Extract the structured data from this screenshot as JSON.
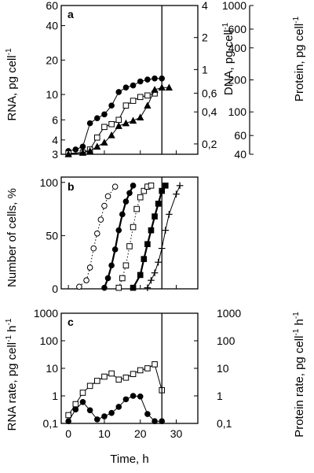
{
  "chart_data": [
    {
      "panel": "a",
      "type": "line",
      "xlim": [
        -2,
        36
      ],
      "vertical_line_x": 26,
      "axes": {
        "left": {
          "label": "RNA, pg cell",
          "label_sup": "-1",
          "scale": "log",
          "lim": [
            3,
            60
          ],
          "ticks": [
            {
              "v": 3,
              "t": "3"
            },
            {
              "v": 4,
              "t": "4"
            },
            {
              "v": 6,
              "t": "6"
            },
            {
              "v": 10,
              "t": "10"
            },
            {
              "v": 20,
              "t": "20"
            },
            {
              "v": 40,
              "t": "40"
            },
            {
              "v": 60,
              "t": "60"
            }
          ]
        },
        "right1": {
          "label": "DNA, pg  cell",
          "label_sup": "-1",
          "scale": "log",
          "lim": [
            0.16,
            4
          ],
          "ticks": [
            {
              "v": 0.2,
              "t": "0,2"
            },
            {
              "v": 0.4,
              "t": "0,4"
            },
            {
              "v": 0.6,
              "t": "0,6"
            },
            {
              "v": 1,
              "t": "1"
            },
            {
              "v": 2,
              "t": "2"
            },
            {
              "v": 4,
              "t": "4"
            }
          ]
        },
        "right2": {
          "label": "Protein, pg  cell",
          "label_sup": "-1",
          "scale": "log",
          "lim": [
            40,
            1000
          ],
          "ticks": [
            {
              "v": 40,
              "t": "40"
            },
            {
              "v": 60,
              "t": "60"
            },
            {
              "v": 100,
              "t": "100"
            },
            {
              "v": 200,
              "t": "200"
            },
            {
              "v": 400,
              "t": "400"
            },
            {
              "v": 600,
              "t": "600"
            },
            {
              "v": 1000,
              "t": "1000"
            }
          ]
        }
      },
      "series": [
        {
          "marker": "filled-circle",
          "axis": "left",
          "style": "solid",
          "x": [
            0,
            2,
            4,
            6,
            8,
            10,
            12,
            14,
            16,
            18,
            20,
            22,
            24,
            26
          ],
          "y": [
            3.2,
            3.3,
            3.5,
            5.6,
            6.2,
            6.7,
            8.0,
            10.5,
            11.5,
            12.0,
            13.0,
            13.5,
            13.8,
            13.8
          ]
        },
        {
          "marker": "open-square",
          "axis": "left",
          "style": "solid",
          "x": [
            0,
            4,
            6,
            8,
            10,
            12,
            14,
            16,
            18,
            20,
            22,
            24
          ],
          "y": [
            3.05,
            3.1,
            3.3,
            4.2,
            5.2,
            5.5,
            6.0,
            8.0,
            8.8,
            9.5,
            9.8,
            10.2
          ]
        },
        {
          "marker": "filled-triangle",
          "axis": "left",
          "style": "solid",
          "x": [
            0,
            4,
            6,
            8,
            10,
            12,
            14,
            16,
            18,
            20,
            22,
            24,
            26,
            28
          ],
          "y": [
            3.0,
            3.1,
            3.2,
            3.5,
            3.8,
            4.4,
            5.3,
            5.6,
            5.9,
            6.3,
            8.0,
            11.0,
            11.5,
            11.5
          ]
        }
      ]
    },
    {
      "panel": "b",
      "type": "line",
      "xlim": [
        -2,
        36
      ],
      "vertical_line_x": 26,
      "axes": {
        "left": {
          "label": "Number of cells, %",
          "scale": "linear",
          "lim": [
            0,
            105
          ],
          "ticks": [
            {
              "v": 0,
              "t": "0"
            },
            {
              "v": 50,
              "t": "50"
            },
            {
              "v": 100,
              "t": "100"
            }
          ]
        }
      },
      "series": [
        {
          "marker": "open-circle",
          "style": "dotted",
          "x": [
            3,
            5,
            6,
            7,
            8,
            9,
            10,
            11,
            13
          ],
          "y": [
            2,
            8,
            20,
            38,
            52,
            65,
            78,
            87,
            96
          ]
        },
        {
          "marker": "filled-circle",
          "style": "bold",
          "x": [
            10,
            11,
            12,
            13,
            14,
            15,
            16,
            17,
            18
          ],
          "y": [
            1,
            10,
            22,
            37,
            55,
            70,
            82,
            90,
            97
          ]
        },
        {
          "marker": "open-square",
          "style": "dotted",
          "x": [
            14,
            15,
            16,
            17,
            18,
            19,
            20,
            21,
            22,
            23
          ],
          "y": [
            1,
            10,
            22,
            40,
            58,
            75,
            86,
            92,
            96,
            97
          ]
        },
        {
          "marker": "filled-square",
          "style": "bold",
          "x": [
            18,
            20,
            21,
            22,
            23,
            24,
            25,
            26,
            27
          ],
          "y": [
            1,
            13,
            28,
            42,
            55,
            68,
            80,
            92,
            97
          ]
        },
        {
          "marker": "plus",
          "style": "solid",
          "x": [
            22,
            23,
            24,
            25,
            26,
            27,
            28,
            30,
            31
          ],
          "y": [
            1,
            8,
            15,
            25,
            38,
            55,
            70,
            89,
            97
          ]
        }
      ]
    },
    {
      "panel": "c",
      "type": "line",
      "xlim": [
        -2,
        36
      ],
      "vertical_line_x": 26,
      "axes": {
        "left": {
          "label": "RNA rate, pg  cell",
          "label_sup1": "-1",
          "label_mid": "  h",
          "label_sup2": "-1",
          "scale": "log",
          "lim": [
            0.1,
            1000
          ],
          "ticks": [
            {
              "v": 0.1,
              "t": "0,1"
            },
            {
              "v": 1,
              "t": "1"
            },
            {
              "v": 10,
              "t": "10"
            },
            {
              "v": 100,
              "t": "100"
            },
            {
              "v": 1000,
              "t": "1000"
            }
          ]
        },
        "right": {
          "label": "Protein rate, pg  cell",
          "label_sup1": "-1",
          "label_mid": "  h",
          "label_sup2": "-1",
          "scale": "log",
          "lim": [
            0.1,
            1000
          ],
          "ticks": [
            {
              "v": 0.1,
              "t": "0,1"
            },
            {
              "v": 1,
              "t": "1"
            },
            {
              "v": 10,
              "t": "10"
            },
            {
              "v": 100,
              "t": "100"
            },
            {
              "v": 1000,
              "t": "1000"
            }
          ]
        }
      },
      "xaxis": {
        "label": "Time, h",
        "ticks": [
          {
            "v": 0,
            "t": "0"
          },
          {
            "v": 10,
            "t": "10"
          },
          {
            "v": 20,
            "t": "20"
          },
          {
            "v": 30,
            "t": "30"
          }
        ]
      },
      "series": [
        {
          "marker": "open-square",
          "axis": "right",
          "style": "solid",
          "x": [
            0,
            2,
            4,
            6,
            8,
            10,
            12,
            14,
            16,
            18,
            20,
            22,
            24,
            26
          ],
          "y": [
            0.2,
            0.5,
            1.3,
            2.3,
            3.5,
            5.0,
            6.5,
            3.9,
            4.6,
            6.2,
            8.5,
            10.0,
            14.0,
            1.6
          ]
        },
        {
          "marker": "filled-circle",
          "axis": "left",
          "style": "solid",
          "x": [
            0,
            2,
            4,
            6,
            8,
            10,
            12,
            14,
            16,
            18,
            20,
            22,
            24,
            26
          ],
          "y": [
            0.12,
            0.32,
            0.6,
            0.3,
            0.14,
            0.18,
            0.24,
            0.4,
            0.75,
            1.0,
            0.95,
            0.22,
            0.12,
            0.12
          ]
        }
      ]
    }
  ],
  "panel_letters": {
    "a": "a",
    "b": "b",
    "c": "c"
  }
}
